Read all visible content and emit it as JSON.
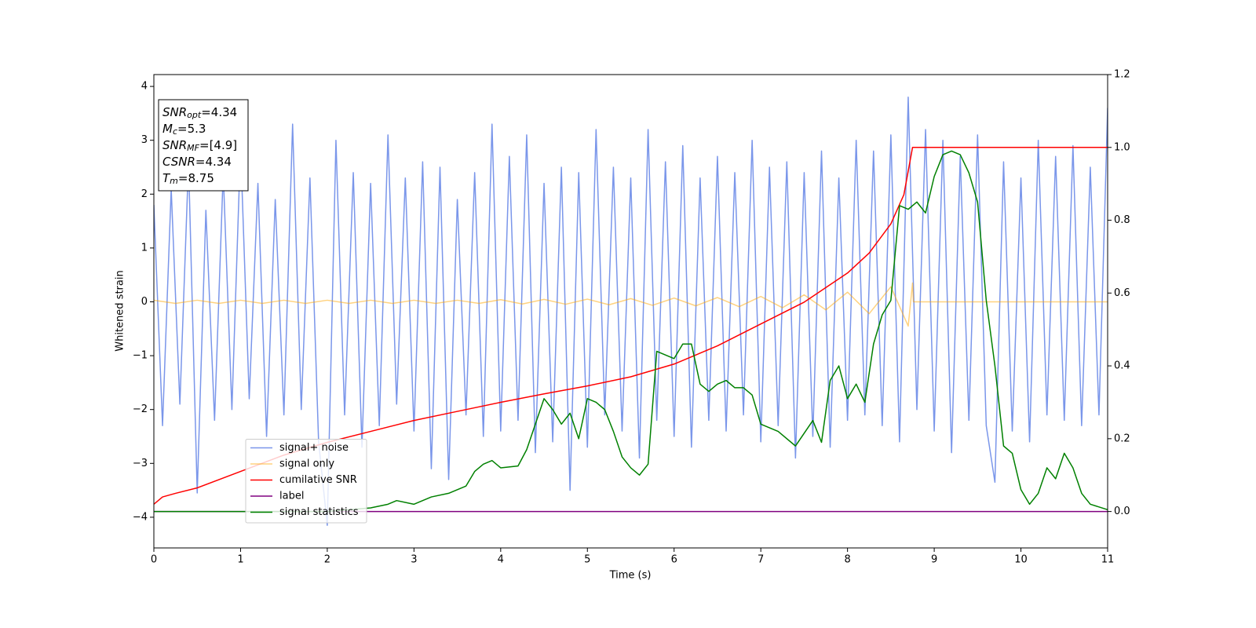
{
  "chart_data": {
    "type": "line",
    "xlabel": "Time (s)",
    "ylabel": "Whitened strain",
    "xlim": [
      0,
      11
    ],
    "xticks": [
      0,
      1,
      2,
      3,
      4,
      5,
      6,
      7,
      8,
      9,
      10,
      11
    ],
    "ylim": [
      -4.57,
      4.22
    ],
    "yticks": [
      -4,
      -3,
      -2,
      -1,
      0,
      1,
      2,
      3,
      4
    ],
    "y2lim": [
      -0.1,
      1.2
    ],
    "y2ticks": [
      {
        "value": 0,
        "label": "0.0"
      },
      0.2,
      0.4,
      0.6,
      0.8,
      {
        "value": 1,
        "label": "1.0"
      },
      1.2
    ],
    "legend": "lower left",
    "annotation": [
      {
        "symbol": "SNR",
        "sub": "opt",
        "value": "=4.34"
      },
      {
        "symbol": "M",
        "sub": "c",
        "value": "=5.3"
      },
      {
        "symbol": "SNR",
        "sub": "MF",
        "value": "=[4.9]"
      },
      {
        "symbol": "CSNR",
        "value": "=4.34"
      },
      {
        "symbol": "T",
        "sub": "m",
        "value": "=8.75"
      }
    ],
    "series": [
      {
        "name": "signal+ noise",
        "color": "royalblue",
        "alpha": 0.7,
        "axis": "y",
        "x": [
          0,
          0.1,
          0.2,
          0.3,
          0.4,
          0.5,
          0.6,
          0.7,
          0.8,
          0.9,
          1,
          1.1,
          1.2,
          1.3,
          1.4,
          1.5,
          1.6,
          1.7,
          1.8,
          1.9,
          2,
          2.1,
          2.2,
          2.3,
          2.4,
          2.5,
          2.6,
          2.7,
          2.8,
          2.9,
          3,
          3.1,
          3.2,
          3.3,
          3.4,
          3.5,
          3.6,
          3.7,
          3.8,
          3.9,
          4,
          4.1,
          4.2,
          4.3,
          4.4,
          4.5,
          4.6,
          4.7,
          4.8,
          4.9,
          5,
          5.1,
          5.2,
          5.3,
          5.4,
          5.5,
          5.6,
          5.7,
          5.8,
          5.9,
          6,
          6.1,
          6.2,
          6.3,
          6.4,
          6.5,
          6.6,
          6.7,
          6.8,
          6.9,
          7,
          7.1,
          7.2,
          7.3,
          7.4,
          7.5,
          7.6,
          7.7,
          7.8,
          7.9,
          8,
          8.1,
          8.2,
          8.3,
          8.4,
          8.5,
          8.6,
          8.7,
          8.8,
          8.9,
          9,
          9.1,
          9.2,
          9.3,
          9.4,
          9.5,
          9.6,
          9.7,
          9.8,
          9.9,
          10,
          10.1,
          10.2,
          10.3,
          10.4,
          10.5,
          10.6,
          10.7,
          10.8,
          10.9,
          11
        ],
        "values": [
          1.8,
          -2.3,
          2.1,
          -1.9,
          2.6,
          -3.55,
          1.7,
          -2.2,
          2.4,
          -2.0,
          2.9,
          -1.8,
          2.2,
          -2.5,
          1.9,
          -2.1,
          3.3,
          -2.0,
          2.3,
          -2.6,
          -4.15,
          3.0,
          -2.1,
          2.4,
          -2.7,
          2.2,
          -2.3,
          3.1,
          -1.9,
          2.3,
          -2.4,
          2.6,
          -3.1,
          2.5,
          -3.3,
          1.9,
          -2.1,
          2.4,
          -2.5,
          3.3,
          -2.4,
          2.7,
          -2.2,
          3.1,
          -2.8,
          2.2,
          -2.6,
          2.5,
          -3.5,
          2.4,
          -2.7,
          3.2,
          -2.1,
          2.5,
          -2.4,
          2.3,
          -2.9,
          3.2,
          -2.2,
          2.6,
          -2.5,
          2.9,
          -2.7,
          2.3,
          -2.2,
          2.7,
          -2.4,
          2.4,
          -2.1,
          3.0,
          -2.6,
          2.5,
          -2.3,
          2.6,
          -2.9,
          2.4,
          -2.5,
          2.8,
          -2.7,
          2.3,
          -2.2,
          3.0,
          -2.1,
          2.8,
          -2.3,
          3.1,
          -2.6,
          3.8,
          -2.0,
          3.2,
          -2.4,
          3.0,
          -2.8,
          2.7,
          -2.2,
          3.1,
          -2.3,
          -3.35,
          2.6,
          -2.4,
          2.3,
          -2.6,
          3.0,
          -2.1,
          2.7,
          -2.2,
          2.9,
          -2.3,
          2.5,
          -2.1,
          3.6
        ]
      },
      {
        "name": "signal only",
        "color": "orange",
        "alpha": 0.5,
        "axis": "y",
        "x": [
          0,
          0.25,
          0.5,
          0.75,
          1,
          1.25,
          1.5,
          1.75,
          2,
          2.25,
          2.5,
          2.75,
          3,
          3.25,
          3.5,
          3.75,
          4,
          4.25,
          4.5,
          4.75,
          5,
          5.25,
          5.5,
          5.75,
          6,
          6.25,
          6.5,
          6.75,
          7,
          7.25,
          7.5,
          7.75,
          8,
          8.25,
          8.5,
          8.7,
          8.75,
          8.76,
          11
        ],
        "values": [
          0.03,
          -0.03,
          0.03,
          -0.03,
          0.03,
          -0.03,
          0.03,
          -0.03,
          0.03,
          -0.03,
          0.03,
          -0.03,
          0.03,
          -0.03,
          0.03,
          -0.03,
          0.04,
          -0.04,
          0.045,
          -0.045,
          0.05,
          -0.055,
          0.06,
          -0.065,
          0.07,
          -0.075,
          0.08,
          -0.09,
          0.1,
          -0.11,
          0.13,
          -0.15,
          0.18,
          -0.22,
          0.28,
          -0.45,
          0.35,
          0,
          0
        ]
      },
      {
        "name": "cumilative SNR",
        "color": "red",
        "alpha": 1,
        "axis": "y2",
        "x": [
          0,
          0.1,
          0.25,
          0.5,
          1,
          1.5,
          2,
          2.5,
          3,
          3.5,
          4,
          4.5,
          5,
          5.5,
          6,
          6.5,
          7,
          7.5,
          8,
          8.25,
          8.5,
          8.65,
          8.75,
          11
        ],
        "values": [
          0.02,
          0.04,
          0.05,
          0.065,
          0.11,
          0.155,
          0.19,
          0.22,
          0.25,
          0.275,
          0.3,
          0.323,
          0.345,
          0.37,
          0.405,
          0.455,
          0.515,
          0.575,
          0.655,
          0.71,
          0.79,
          0.87,
          1.0,
          1.0
        ]
      },
      {
        "name": "label",
        "color": "purple",
        "alpha": 1,
        "axis": "y2",
        "x": [
          0,
          11
        ],
        "values": [
          0,
          0
        ]
      },
      {
        "name": "signal statistics",
        "color": "green",
        "alpha": 1,
        "axis": "y2",
        "x": [
          0,
          2,
          2.5,
          2.7,
          2.8,
          3,
          3.2,
          3.4,
          3.6,
          3.7,
          3.8,
          3.9,
          4,
          4.2,
          4.3,
          4.4,
          4.5,
          4.6,
          4.7,
          4.8,
          4.9,
          5,
          5.1,
          5.2,
          5.3,
          5.4,
          5.5,
          5.6,
          5.7,
          5.8,
          6,
          6.1,
          6.2,
          6.3,
          6.4,
          6.5,
          6.6,
          6.7,
          6.8,
          6.9,
          7,
          7.2,
          7.4,
          7.6,
          7.7,
          7.8,
          7.9,
          8,
          8.1,
          8.2,
          8.3,
          8.4,
          8.5,
          8.6,
          8.7,
          8.8,
          8.9,
          9,
          9.1,
          9.2,
          9.3,
          9.4,
          9.5,
          9.6,
          9.7,
          9.8,
          9.9,
          10,
          10.1,
          10.2,
          10.3,
          10.4,
          10.5,
          10.6,
          10.7,
          10.8,
          11
        ],
        "values": [
          0,
          0,
          0.01,
          0.02,
          0.03,
          0.02,
          0.04,
          0.05,
          0.07,
          0.11,
          0.13,
          0.14,
          0.12,
          0.125,
          0.17,
          0.24,
          0.31,
          0.28,
          0.24,
          0.27,
          0.2,
          0.31,
          0.3,
          0.28,
          0.22,
          0.15,
          0.12,
          0.1,
          0.13,
          0.44,
          0.42,
          0.46,
          0.46,
          0.35,
          0.33,
          0.35,
          0.36,
          0.34,
          0.34,
          0.32,
          0.24,
          0.22,
          0.18,
          0.25,
          0.19,
          0.36,
          0.4,
          0.31,
          0.35,
          0.3,
          0.46,
          0.54,
          0.58,
          0.84,
          0.83,
          0.85,
          0.82,
          0.92,
          0.98,
          0.99,
          0.98,
          0.93,
          0.85,
          0.58,
          0.4,
          0.18,
          0.16,
          0.06,
          0.02,
          0.05,
          0.12,
          0.09,
          0.16,
          0.12,
          0.05,
          0.02,
          0.005
        ]
      }
    ]
  }
}
